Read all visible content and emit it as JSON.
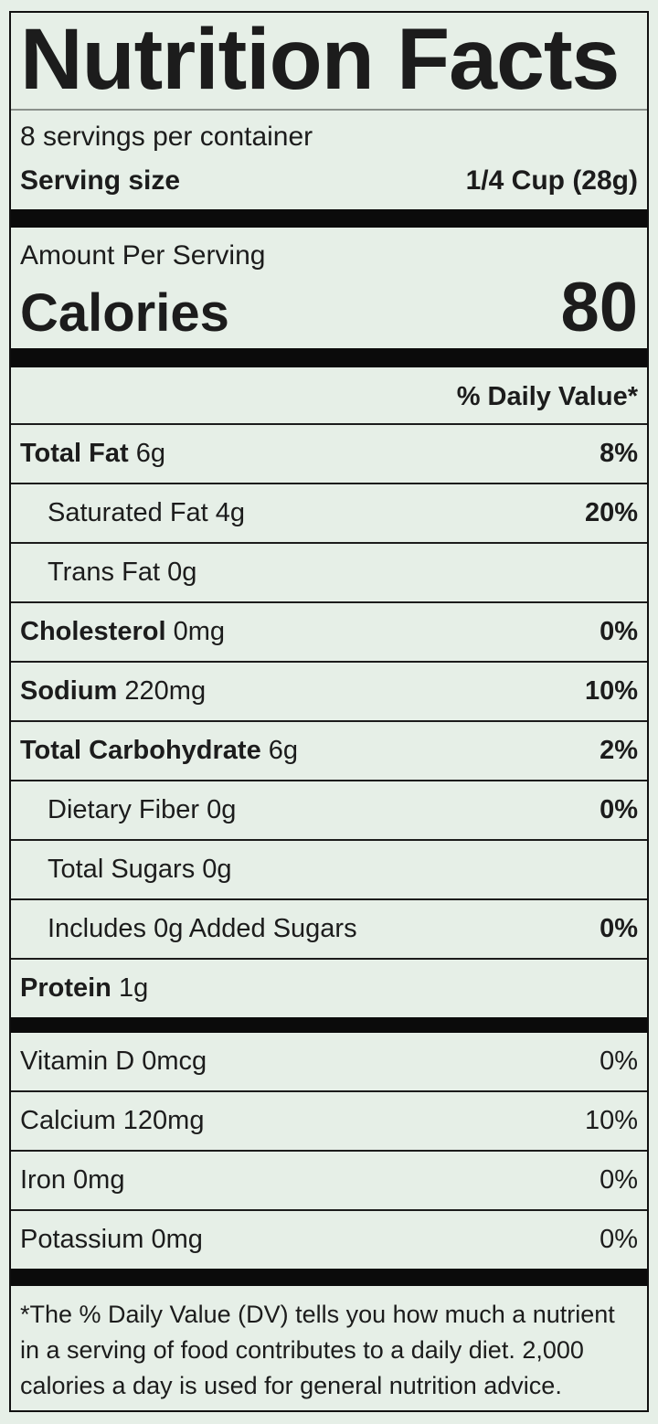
{
  "label": {
    "title": "Nutrition Facts",
    "servings_per_container": "8 servings per container",
    "serving_size_label": "Serving size",
    "serving_size_value": "1/4 Cup (28g)",
    "amount_per_serving": "Amount Per Serving",
    "calories_label": "Calories",
    "calories_value": "80",
    "daily_value_header": "% Daily Value*",
    "nutrients": [
      {
        "name": "Total Fat",
        "amount": "6g",
        "dv": "8%"
      },
      {
        "name": "Saturated Fat",
        "amount": "4g",
        "dv": "20%"
      },
      {
        "name": "Trans Fat",
        "amount": "0g",
        "dv": ""
      },
      {
        "name": "Cholesterol",
        "amount": "0mg",
        "dv": "0%"
      },
      {
        "name": "Sodium",
        "amount": "220mg",
        "dv": "10%"
      },
      {
        "name": "Total Carbohydrate",
        "amount": "6g",
        "dv": "2%"
      },
      {
        "name": "Dietary Fiber",
        "amount": "0g",
        "dv": "0%"
      },
      {
        "name": "Total Sugars",
        "amount": "0g",
        "dv": ""
      },
      {
        "name": "Includes 0g Added Sugars",
        "amount": "",
        "dv": "0%"
      },
      {
        "name": "Protein",
        "amount": "1g",
        "dv": ""
      }
    ],
    "micronutrients": [
      {
        "name": "Vitamin D 0mcg",
        "dv": "0%"
      },
      {
        "name": "Calcium 120mg",
        "dv": "10%"
      },
      {
        "name": "Iron 0mg",
        "dv": "0%"
      },
      {
        "name": "Potassium 0mg",
        "dv": "0%"
      }
    ],
    "footnote": "*The % Daily Value (DV) tells you how much a nutrient in a serving of food contributes to a daily diet. 2,000 calories a day is used for general nutrition advice."
  },
  "colors": {
    "background": "#e6efe7",
    "text": "#1c1c1c",
    "bar": "#0b0b0b",
    "title_rule": "#8a908b"
  }
}
